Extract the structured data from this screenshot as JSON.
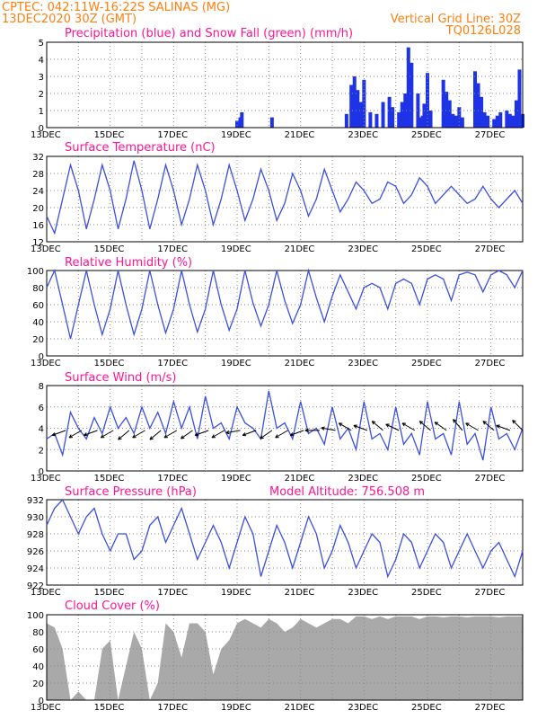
{
  "header": {
    "left_line1": "CPTEC:   042:11W-16:22S   SALINAS (MG)",
    "left_line2": "13DEC2020 30Z (GMT)",
    "right_line1": "Vertical Grid Line: 30Z",
    "right_line2": "TQ0126L028"
  },
  "colors": {
    "header": "#ff7f0e",
    "title": "#ff1493",
    "line": "#3b4fe0",
    "precip": "#1f33e6",
    "snow": "#2ca02c",
    "cloud": "#a9a9a9",
    "grid": "#888888"
  },
  "x_axis": {
    "labels": [
      "13DEC",
      "15DEC",
      "17DEC",
      "19DEC",
      "21DEC",
      "23DEC",
      "25DEC",
      "27DEC"
    ],
    "first_label": "13DEC",
    "day_start": 13,
    "day_end": 28
  },
  "panels": {
    "precip": {
      "title": "Precipitation (blue) and Snow Fall (green) (mm/h)",
      "yticks": [
        "0",
        "1",
        "2",
        "3",
        "4",
        "5"
      ]
    },
    "temp": {
      "title": "Surface Temperature (nC)",
      "yticks": [
        "12",
        "16",
        "20",
        "24",
        "28",
        "32"
      ]
    },
    "rh": {
      "title": "Relative Humidity (%)",
      "yticks": [
        "0",
        "20",
        "40",
        "60",
        "80",
        "100"
      ]
    },
    "wind": {
      "title": "Surface Wind (m/s)",
      "yticks": [
        "0",
        "2",
        "4",
        "6",
        "8"
      ]
    },
    "press": {
      "title": "Surface Pressure (hPa)",
      "subtitle": "Model Altitude: 756.508 m",
      "yticks": [
        "922",
        "924",
        "926",
        "928",
        "930",
        "932"
      ]
    },
    "cloud": {
      "title": "Cloud Cover (%)",
      "yticks": [
        "0",
        "20",
        "40",
        "60",
        "80",
        "100"
      ]
    }
  },
  "chart_data": [
    {
      "type": "bar",
      "title": "Precipitation (blue) and Snow Fall (green) (mm/h)",
      "ylim": [
        0,
        5
      ],
      "x_unit": "day of December 2020",
      "series": [
        {
          "name": "Precipitation",
          "x": [
            19.0,
            19.1,
            19.15,
            20.1,
            22.45,
            22.6,
            22.7,
            22.8,
            22.9,
            23.0,
            23.2,
            23.4,
            23.6,
            23.8,
            23.9,
            24.1,
            24.2,
            24.3,
            24.4,
            24.5,
            24.7,
            24.8,
            24.85,
            24.9,
            25.0,
            25.1,
            25.5,
            25.6,
            25.7,
            25.8,
            25.9,
            26.0,
            26.1,
            26.5,
            26.6,
            26.7,
            26.8,
            26.9,
            27.1,
            27.2,
            27.3,
            27.5,
            27.6,
            27.7,
            27.8,
            27.9,
            28.0
          ],
          "values": [
            0.4,
            0.6,
            0.9,
            0.6,
            0.8,
            2.5,
            3.0,
            2.2,
            1.5,
            2.8,
            0.9,
            0.8,
            1.5,
            1.8,
            1.2,
            0.9,
            1.5,
            2.0,
            4.7,
            3.8,
            2.0,
            0.6,
            0.7,
            1.4,
            3.2,
            1.0,
            2.8,
            2.1,
            1.6,
            0.8,
            0.7,
            1.2,
            0.6,
            3.3,
            2.6,
            1.8,
            0.9,
            0.7,
            0.5,
            0.7,
            0.9,
            1.0,
            0.8,
            0.7,
            1.6,
            3.4,
            0.8
          ]
        },
        {
          "name": "Snow Fall",
          "x": [],
          "values": []
        }
      ]
    },
    {
      "type": "line",
      "title": "Surface Temperature (nC)",
      "ylim": [
        12,
        32
      ],
      "x_unit": "day of December 2020",
      "x": [
        13.0,
        13.25,
        13.5,
        13.75,
        14.0,
        14.25,
        14.5,
        14.75,
        15.0,
        15.25,
        15.5,
        15.75,
        16.0,
        16.25,
        16.5,
        16.75,
        17.0,
        17.25,
        17.5,
        17.75,
        18.0,
        18.25,
        18.5,
        18.75,
        19.0,
        19.25,
        19.5,
        19.75,
        20.0,
        20.25,
        20.5,
        20.75,
        21.0,
        21.25,
        21.5,
        21.75,
        22.0,
        22.25,
        22.5,
        22.75,
        23.0,
        23.25,
        23.5,
        23.75,
        24.0,
        24.25,
        24.5,
        24.75,
        25.0,
        25.25,
        25.5,
        25.75,
        26.0,
        26.25,
        26.5,
        26.75,
        27.0,
        27.25,
        27.5,
        27.75,
        28.0
      ],
      "y": [
        18,
        14,
        22,
        30,
        24,
        15,
        22,
        30,
        24,
        15,
        22,
        31,
        24,
        15,
        22,
        30,
        24,
        16,
        22,
        30,
        24,
        16,
        22,
        30,
        24,
        17,
        22,
        29,
        24,
        17,
        21,
        28,
        24,
        18,
        22,
        29,
        24,
        19,
        22,
        26,
        24,
        21,
        22,
        26,
        25,
        21,
        23,
        27,
        25,
        21,
        23,
        25,
        23,
        21,
        22,
        25,
        22,
        20,
        22,
        24,
        21
      ]
    },
    {
      "type": "line",
      "title": "Relative Humidity (%)",
      "ylim": [
        0,
        100
      ],
      "x_unit": "day of December 2020",
      "x": [
        13.0,
        13.25,
        13.5,
        13.75,
        14.0,
        14.25,
        14.5,
        14.75,
        15.0,
        15.25,
        15.5,
        15.75,
        16.0,
        16.25,
        16.5,
        16.75,
        17.0,
        17.25,
        17.5,
        17.75,
        18.0,
        18.25,
        18.5,
        18.75,
        19.0,
        19.25,
        19.5,
        19.75,
        20.0,
        20.25,
        20.5,
        20.75,
        21.0,
        21.25,
        21.5,
        21.75,
        22.0,
        22.25,
        22.5,
        22.75,
        23.0,
        23.25,
        23.5,
        23.75,
        24.0,
        24.25,
        24.5,
        24.75,
        25.0,
        25.25,
        25.5,
        25.75,
        26.0,
        26.25,
        26.5,
        26.75,
        27.0,
        27.25,
        27.5,
        27.75,
        28.0
      ],
      "y": [
        80,
        100,
        60,
        20,
        60,
        100,
        60,
        25,
        55,
        100,
        60,
        25,
        55,
        100,
        60,
        27,
        55,
        100,
        60,
        28,
        55,
        100,
        60,
        30,
        55,
        100,
        62,
        35,
        60,
        100,
        65,
        38,
        60,
        100,
        68,
        40,
        70,
        95,
        75,
        55,
        80,
        85,
        80,
        55,
        85,
        90,
        85,
        60,
        90,
        95,
        90,
        65,
        95,
        98,
        95,
        75,
        95,
        100,
        95,
        80,
        100
      ]
    },
    {
      "type": "line",
      "title": "Surface Wind (m/s)",
      "ylim": [
        0,
        8
      ],
      "x_unit": "day of December 2020",
      "x": [
        13.0,
        13.25,
        13.5,
        13.75,
        14.0,
        14.25,
        14.5,
        14.75,
        15.0,
        15.25,
        15.5,
        15.75,
        16.0,
        16.25,
        16.5,
        16.75,
        17.0,
        17.25,
        17.5,
        17.75,
        18.0,
        18.25,
        18.5,
        18.75,
        19.0,
        19.25,
        19.5,
        19.75,
        20.0,
        20.25,
        20.5,
        20.75,
        21.0,
        21.25,
        21.5,
        21.75,
        22.0,
        22.25,
        22.5,
        22.75,
        23.0,
        23.25,
        23.5,
        23.75,
        24.0,
        24.25,
        24.5,
        24.75,
        25.0,
        25.25,
        25.5,
        25.75,
        26.0,
        26.25,
        26.5,
        26.75,
        27.0,
        27.25,
        27.5,
        27.75,
        28.0
      ],
      "y": [
        3.0,
        3.5,
        1.5,
        5.5,
        4.0,
        3.0,
        5.0,
        3.5,
        6.0,
        4.0,
        5.0,
        3.5,
        6.0,
        4.0,
        5.5,
        3.5,
        6.5,
        4.0,
        6.0,
        3.0,
        7.0,
        4.0,
        4.5,
        3.0,
        6.0,
        4.5,
        4.0,
        3.0,
        7.5,
        4.0,
        4.5,
        3.0,
        6.5,
        3.5,
        4.0,
        2.5,
        6.0,
        3.0,
        4.0,
        2.0,
        6.5,
        3.0,
        3.5,
        2.0,
        6.0,
        2.5,
        3.5,
        1.5,
        6.5,
        3.0,
        3.5,
        1.5,
        6.5,
        2.5,
        3.5,
        1.0,
        6.0,
        3.0,
        3.5,
        2.0,
        4.0
      ]
    },
    {
      "type": "line",
      "title": "Surface Pressure (hPa)",
      "ylim": [
        922,
        932
      ],
      "x_unit": "day of December 2020",
      "x": [
        13.0,
        13.25,
        13.5,
        13.75,
        14.0,
        14.25,
        14.5,
        14.75,
        15.0,
        15.25,
        15.5,
        15.75,
        16.0,
        16.25,
        16.5,
        16.75,
        17.0,
        17.25,
        17.5,
        17.75,
        18.0,
        18.25,
        18.5,
        18.75,
        19.0,
        19.25,
        19.5,
        19.75,
        20.0,
        20.25,
        20.5,
        20.75,
        21.0,
        21.25,
        21.5,
        21.75,
        22.0,
        22.25,
        22.5,
        22.75,
        23.0,
        23.25,
        23.5,
        23.75,
        24.0,
        24.25,
        24.5,
        24.75,
        25.0,
        25.25,
        25.5,
        25.75,
        26.0,
        26.25,
        26.5,
        26.75,
        27.0,
        27.25,
        27.5,
        27.75,
        28.0
      ],
      "y": [
        929,
        931,
        932,
        930,
        928,
        930,
        931,
        928,
        926,
        928,
        928,
        925,
        926,
        929,
        930,
        927,
        929,
        931,
        928,
        925,
        927,
        929,
        927,
        924,
        927,
        930,
        928,
        923,
        926,
        929,
        927,
        924,
        927,
        930,
        928,
        924,
        926,
        929,
        927,
        924,
        926,
        928,
        927,
        923,
        925,
        928,
        927,
        924,
        926,
        928,
        927,
        924,
        926,
        928,
        926,
        924,
        926,
        927,
        925,
        923,
        926
      ]
    },
    {
      "type": "area",
      "title": "Cloud Cover (%)",
      "ylim": [
        0,
        100
      ],
      "x_unit": "day of December 2020",
      "x": [
        13.0,
        13.25,
        13.5,
        13.75,
        14.0,
        14.25,
        14.5,
        14.75,
        15.0,
        15.25,
        15.5,
        15.75,
        16.0,
        16.25,
        16.5,
        16.75,
        17.0,
        17.25,
        17.5,
        17.75,
        18.0,
        18.25,
        18.5,
        18.75,
        19.0,
        19.25,
        19.5,
        19.75,
        20.0,
        20.25,
        20.5,
        20.75,
        21.0,
        21.25,
        21.5,
        21.75,
        22.0,
        22.25,
        22.5,
        22.75,
        23.0,
        23.25,
        23.5,
        23.75,
        24.0,
        24.25,
        24.5,
        24.75,
        25.0,
        25.25,
        25.5,
        25.75,
        26.0,
        26.25,
        26.5,
        26.75,
        27.0,
        27.25,
        27.5,
        27.75,
        28.0
      ],
      "y": [
        90,
        85,
        60,
        0,
        10,
        0,
        0,
        60,
        70,
        0,
        40,
        80,
        60,
        0,
        20,
        90,
        80,
        50,
        90,
        90,
        80,
        30,
        60,
        70,
        90,
        95,
        90,
        85,
        95,
        90,
        80,
        85,
        95,
        90,
        85,
        90,
        95,
        95,
        90,
        98,
        98,
        95,
        98,
        95,
        98,
        98,
        98,
        95,
        98,
        98,
        97,
        98,
        98,
        97,
        98,
        98,
        98,
        97,
        98,
        98,
        98
      ]
    }
  ],
  "wind_arrows": {
    "days": [
      13.6,
      14.1,
      14.6,
      15.1,
      15.6,
      16.1,
      16.6,
      17.1,
      17.6,
      18.1,
      18.6,
      19.1,
      19.6,
      20.1,
      20.6,
      21.1,
      21.6,
      22.1,
      22.6,
      23.1,
      23.6,
      24.1,
      24.6,
      25.1,
      25.6,
      26.1,
      26.6,
      27.1,
      27.6,
      28.0
    ],
    "direction_deg": [
      200,
      210,
      200,
      210,
      220,
      210,
      220,
      210,
      215,
      200,
      210,
      190,
      200,
      215,
      210,
      200,
      180,
      170,
      150,
      160,
      140,
      155,
      150,
      140,
      145,
      130,
      150,
      140,
      160,
      135
    ]
  }
}
